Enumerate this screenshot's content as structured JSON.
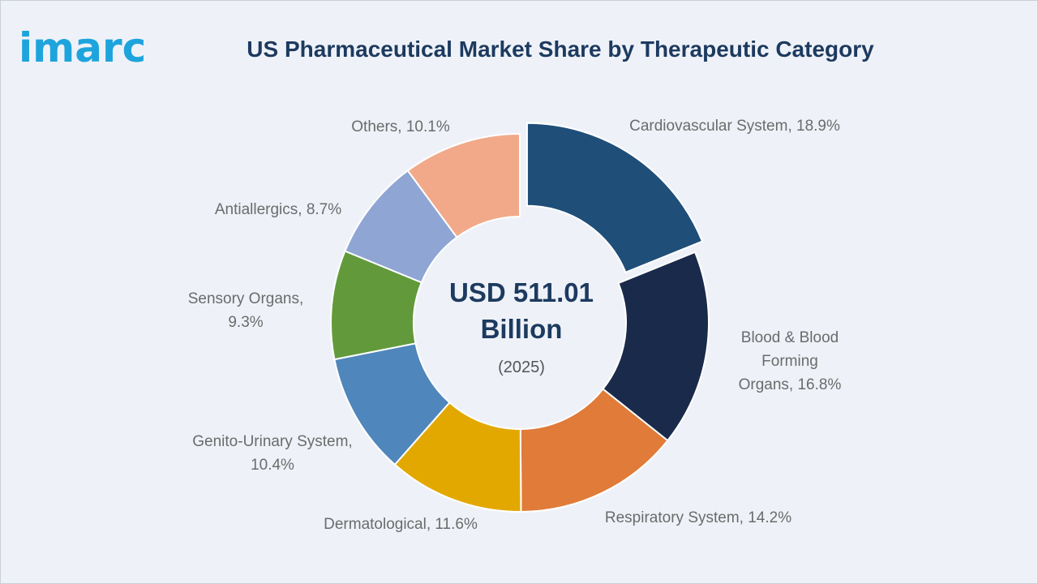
{
  "brand": {
    "logo_text": "imarc"
  },
  "chart_data": {
    "type": "pie",
    "title": "US Pharmaceutical Market Share by Therapeutic Category",
    "unit": "%",
    "center": {
      "line1": "USD 511.01",
      "line2": "Billion",
      "line3": "(2025)"
    },
    "slices": [
      {
        "label": "Cardiovascular System",
        "value": 18.9,
        "color": "#1f4e79",
        "exploded": true
      },
      {
        "label": "Blood & Blood Forming Organs",
        "value": 16.8,
        "color": "#1a2a4a"
      },
      {
        "label": "Respiratory System",
        "value": 14.2,
        "color": "#e07b39"
      },
      {
        "label": "Dermatological",
        "value": 11.6,
        "color": "#e2a800"
      },
      {
        "label": "Genito-Urinary System",
        "value": 10.4,
        "color": "#4f86bb"
      },
      {
        "label": "Sensory Organs",
        "value": 9.3,
        "color": "#629a3b"
      },
      {
        "label": "Antiallergics",
        "value": 8.7,
        "color": "#8fa5d3"
      },
      {
        "label": "Others",
        "value": 10.1,
        "color": "#f1a98a"
      }
    ],
    "labels": [
      {
        "lines": [
          "Cardiovascular System, 18.9%"
        ]
      },
      {
        "lines": [
          "Blood & Blood",
          "Forming",
          "Organs, 16.8%"
        ]
      },
      {
        "lines": [
          "Respiratory System, 14.2%"
        ]
      },
      {
        "lines": [
          "Dermatological, 11.6%"
        ]
      },
      {
        "lines": [
          "Genito-Urinary System,",
          "10.4%"
        ]
      },
      {
        "lines": [
          "Sensory Organs,",
          "9.3%"
        ]
      },
      {
        "lines": [
          "Antiallergics, 8.7%"
        ]
      },
      {
        "lines": [
          "Others, 10.1%"
        ]
      }
    ]
  }
}
